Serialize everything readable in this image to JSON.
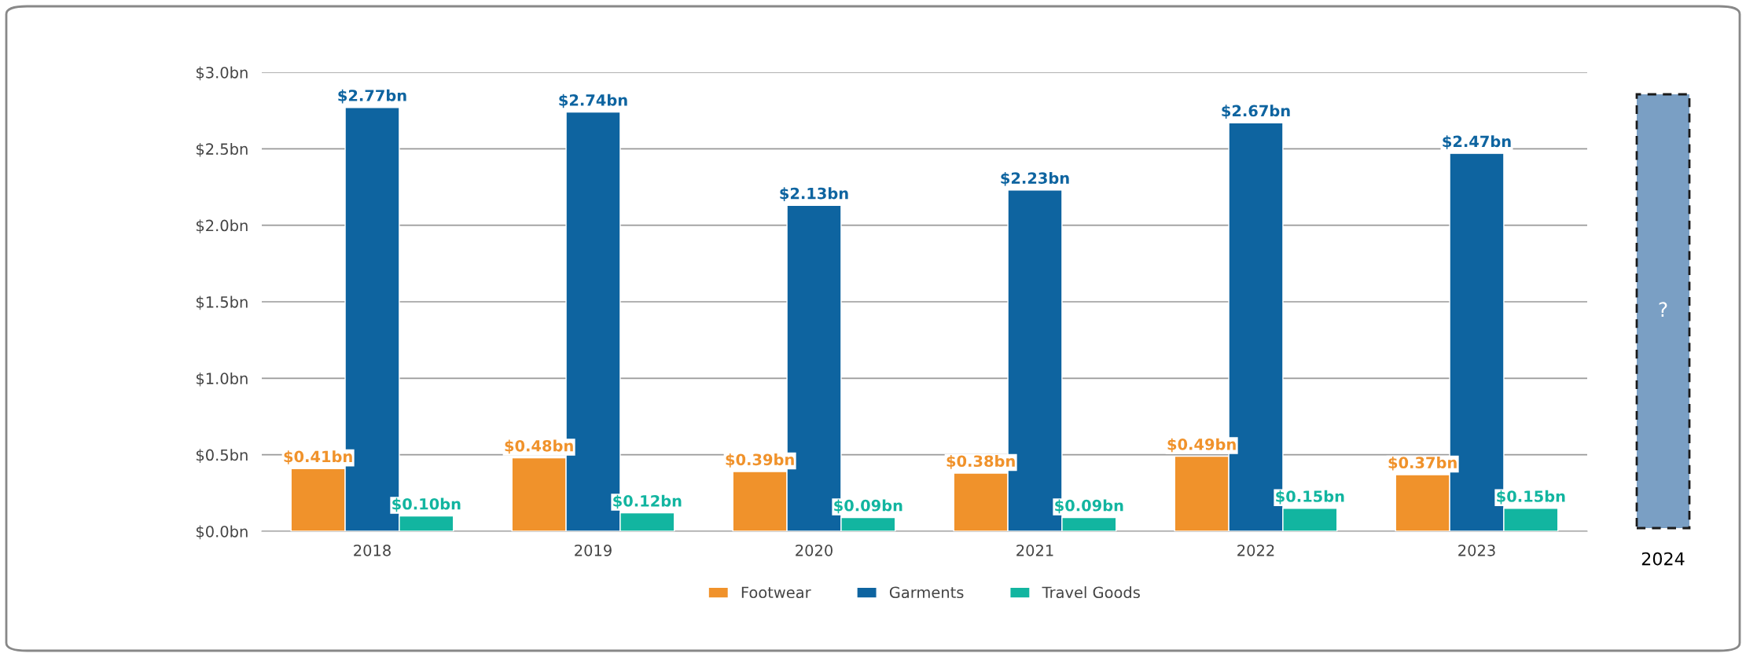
{
  "chart_data": {
    "type": "bar",
    "categories": [
      "2018",
      "2019",
      "2020",
      "2021",
      "2022",
      "2023"
    ],
    "series": [
      {
        "name": "Footwear",
        "color": "#f0922b",
        "values": [
          0.41,
          0.48,
          0.39,
          0.38,
          0.49,
          0.37
        ],
        "value_labels": [
          "$0.41bn",
          "$0.48bn",
          "$0.39bn",
          "$0.38bn",
          "$0.49bn",
          "$0.37bn"
        ]
      },
      {
        "name": "Garments",
        "color": "#0e64a0",
        "values": [
          2.77,
          2.74,
          2.13,
          2.23,
          2.67,
          2.47
        ],
        "value_labels": [
          "$2.77bn",
          "$2.74bn",
          "$2.13bn",
          "$2.23bn",
          "$2.67bn",
          "$2.47bn"
        ]
      },
      {
        "name": "Travel Goods",
        "color": "#12b5a0",
        "values": [
          0.1,
          0.12,
          0.09,
          0.09,
          0.15,
          0.15
        ],
        "value_labels": [
          "$0.10bn",
          "$0.12bn",
          "$0.09bn",
          "$0.09bn",
          "$0.15bn",
          "$0.15bn"
        ]
      }
    ],
    "ylim": [
      0,
      3.0
    ],
    "yticks": [
      {
        "value": 0,
        "label": "$0.0bn"
      },
      {
        "value": 0.5,
        "label": "$0.5bn"
      },
      {
        "value": 1.0,
        "label": "$1.0bn"
      },
      {
        "value": 1.5,
        "label": "$1.5bn"
      },
      {
        "value": 2.0,
        "label": "$2.0bn"
      },
      {
        "value": 2.5,
        "label": "$2.5bn"
      },
      {
        "value": 3.0,
        "label": "$3.0bn"
      }
    ],
    "grid": "y",
    "legend": "bottom",
    "annotations": [
      "?",
      "2024"
    ]
  }
}
